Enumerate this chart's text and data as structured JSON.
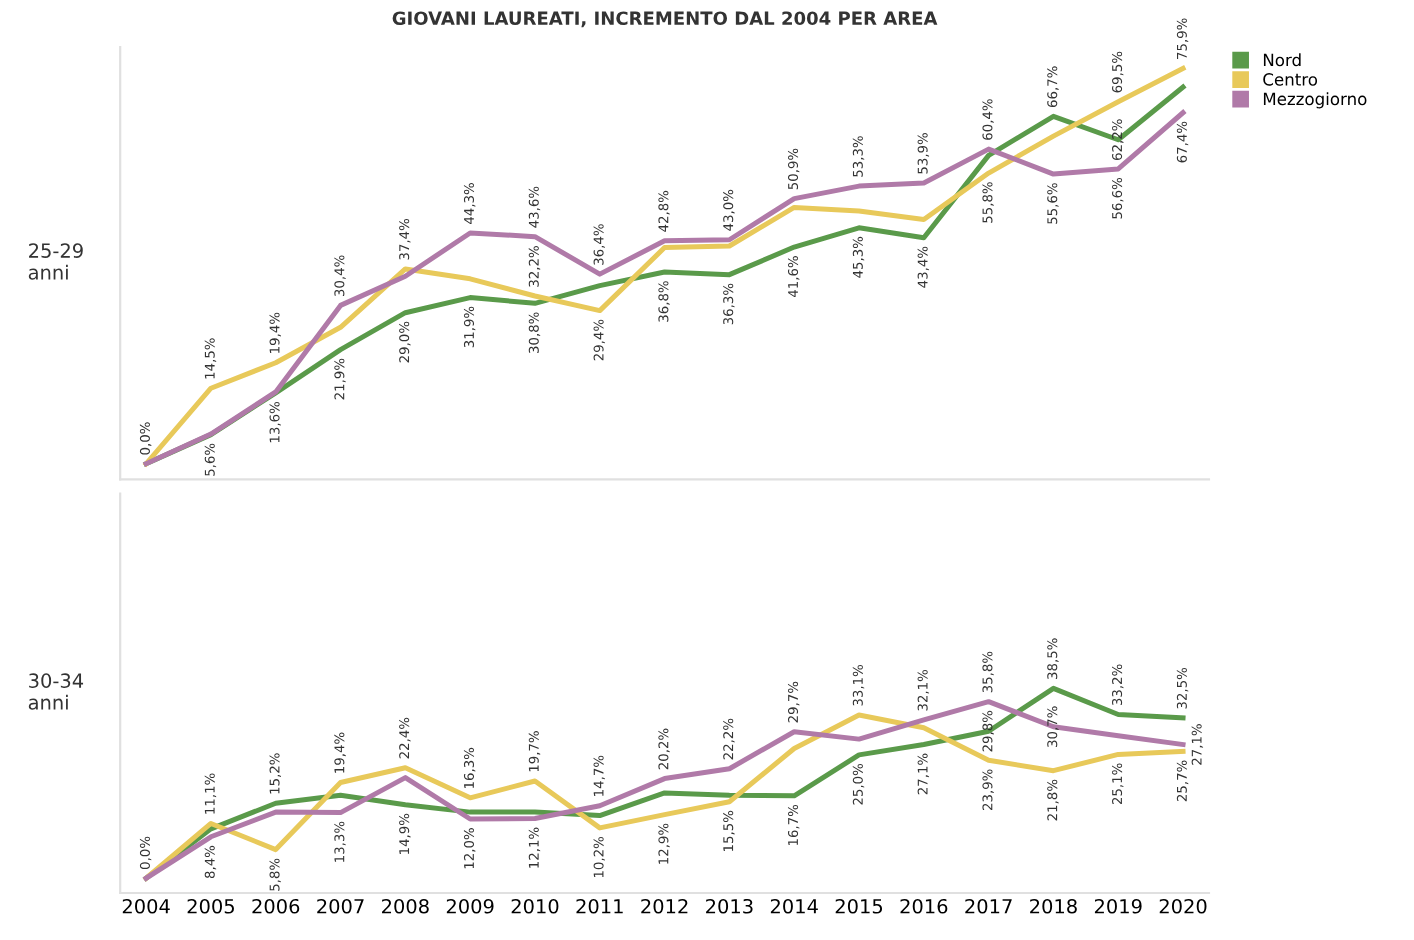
{
  "chart_data": [
    {
      "type": "line",
      "title": "GIOVANI LAUREATI, INCREMENTO DAL 2004 PER AREA",
      "ylabel": "25-29\nanni",
      "ylim": [
        -3,
        80
      ],
      "legend": "top right",
      "tick_labels": false,
      "grid": false,
      "marker": "none",
      "line_style": "solid",
      "categories": [
        "2004",
        "2005",
        "2006",
        "2007",
        "2008",
        "2009",
        "2010",
        "2011",
        "2012",
        "2013",
        "2014",
        "2015",
        "2016",
        "2017",
        "2018",
        "2019",
        "2020"
      ],
      "series": [
        {
          "name": "Nord",
          "color": "#5a9a4a",
          "values": [
            0,
            5.6,
            13.6,
            21.9,
            29.0,
            31.9,
            30.8,
            34.2,
            36.8,
            36.3,
            41.6,
            45.3,
            43.4,
            59.2,
            66.7,
            62.2,
            72.3
          ],
          "value_labels": [
            "0,0%",
            "5,6%",
            "13,6%",
            "21,9%",
            "29,0%",
            "31,9%",
            "30,8%",
            null,
            "36,8%",
            "36,3%",
            "41,6%",
            "45,3%",
            "43,4%",
            null,
            "66,7%",
            "62,2%",
            null
          ]
        },
        {
          "name": "Centro",
          "color": "#e8c95a",
          "values": [
            0,
            14.5,
            19.4,
            26.2,
            37.4,
            35.5,
            32.2,
            29.4,
            41.5,
            41.8,
            49.2,
            48.5,
            46.9,
            55.8,
            62.9,
            69.5,
            75.9
          ],
          "value_labels": [
            null,
            "14,5%",
            "19,4%",
            null,
            "37,4%",
            null,
            "32,2%",
            "29,4%",
            null,
            null,
            null,
            null,
            null,
            "55,8%",
            null,
            "69,5%",
            "75,9%"
          ]
        },
        {
          "name": "Mezzogiorno",
          "color": "#b07aa8",
          "values": [
            0,
            5.7,
            13.8,
            30.4,
            36.0,
            44.3,
            43.6,
            36.4,
            42.8,
            43.0,
            50.9,
            53.3,
            53.9,
            60.4,
            55.6,
            56.6,
            67.4
          ],
          "value_labels": [
            null,
            null,
            null,
            "30,4%",
            null,
            "44,3%",
            "43,6%",
            "36,4%",
            "42,8%",
            "43,0%",
            "50,9%",
            "53,3%",
            "53,9%",
            "60,4%",
            "55,6%",
            "56,6%",
            "67,4%"
          ]
        }
      ]
    },
    {
      "type": "line",
      "ylabel": "30-34\nanni",
      "ylim": [
        -3,
        78
      ],
      "tick_labels": "x",
      "grid": false,
      "marker": "none",
      "line_style": "solid",
      "categories": [
        "2004",
        "2005",
        "2006",
        "2007",
        "2008",
        "2009",
        "2010",
        "2011",
        "2012",
        "2013",
        "2014",
        "2015",
        "2016",
        "2017",
        "2018",
        "2019",
        "2020"
      ],
      "series": [
        {
          "color": "#5a9a4a",
          "values": [
            0,
            10.0,
            15.2,
            16.8,
            14.9,
            13.4,
            13.4,
            12.7,
            17.3,
            16.8,
            16.7,
            25.0,
            27.1,
            29.8,
            38.5,
            33.2,
            32.5
          ],
          "value_labels": [
            "0,0%",
            null,
            "15,2%",
            null,
            "14,9%",
            null,
            null,
            null,
            null,
            null,
            "16,7%",
            "25,0%",
            "27,1%",
            "29,8%",
            "38,5%",
            "33,2%",
            "32,5%"
          ]
        },
        {
          "color": "#e8c95a",
          "values": [
            0,
            11.1,
            5.8,
            19.4,
            22.4,
            16.3,
            19.7,
            10.2,
            12.9,
            15.5,
            26.3,
            33.1,
            30.5,
            23.9,
            21.8,
            25.1,
            25.7
          ],
          "value_labels": [
            null,
            "11,1%",
            "5,8%",
            "19,4%",
            "22,4%",
            "16,3%",
            "19,7%",
            "10,2%",
            "12,9%",
            "15,5%",
            null,
            "33,1%",
            null,
            "23,9%",
            "21,8%",
            "25,1%",
            "25,7%"
          ]
        },
        {
          "color": "#b07aa8",
          "values": [
            0,
            8.4,
            13.4,
            13.3,
            20.4,
            12.0,
            12.1,
            14.7,
            20.2,
            22.2,
            29.7,
            28.2,
            32.1,
            35.8,
            30.7,
            28.9,
            27.1
          ],
          "value_labels": [
            null,
            "8,4%",
            null,
            "13,3%",
            null,
            "12,0%",
            "12,1%",
            "14,7%",
            "20,2%",
            "22,2%",
            "29,7%",
            null,
            "32,1%",
            "35,8%",
            "30,7%",
            null,
            "27,1%"
          ]
        }
      ]
    }
  ]
}
